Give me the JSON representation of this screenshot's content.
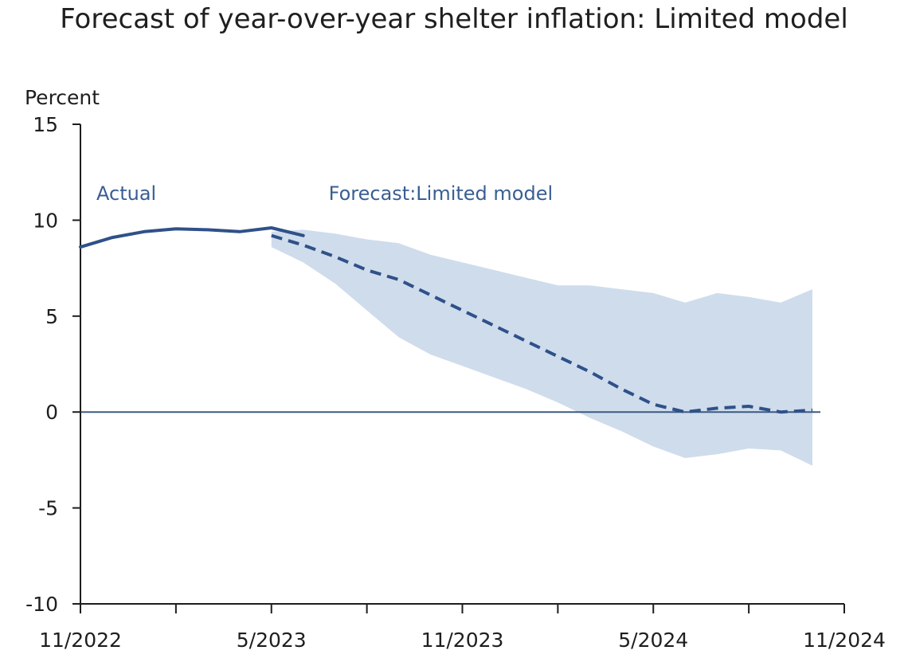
{
  "chart_data": {
    "type": "line",
    "title": "Forecast of year-over-year shelter inflation: Limited model",
    "ylabel": "Percent",
    "xlabel": "",
    "ylim": [
      -10,
      15
    ],
    "yticks": [
      -10,
      -5,
      0,
      5,
      10,
      15
    ],
    "xlim": [
      "2022-11",
      "2024-11"
    ],
    "xticks": [
      "2022-11",
      "2023-02",
      "2023-05",
      "2023-08",
      "2023-11",
      "2024-02",
      "2024-05",
      "2024-08",
      "2024-11"
    ],
    "xtick_labels": [
      "11/2022",
      "",
      "5/2023",
      "",
      "11/2023",
      "",
      "5/2024",
      "",
      "11/2024"
    ],
    "grid": false,
    "colors": {
      "line": "#2f5189",
      "band": "#cfdcec",
      "zero_line": "#3d5a80",
      "axis": "#1e1e1e"
    },
    "series": [
      {
        "name": "Actual",
        "style": "solid",
        "x": [
          "2022-11",
          "2022-12",
          "2023-01",
          "2023-02",
          "2023-03",
          "2023-04",
          "2023-05",
          "2023-06"
        ],
        "y": [
          8.6,
          9.1,
          9.4,
          9.55,
          9.5,
          9.4,
          9.6,
          9.2
        ]
      },
      {
        "name": "Forecast:Limited model",
        "style": "dashed",
        "x": [
          "2023-05",
          "2023-06",
          "2023-07",
          "2023-08",
          "2023-09",
          "2023-10",
          "2023-11",
          "2023-12",
          "2024-01",
          "2024-02",
          "2024-03",
          "2024-04",
          "2024-05",
          "2024-06",
          "2024-07",
          "2024-08",
          "2024-09",
          "2024-10"
        ],
        "y": [
          9.2,
          8.7,
          8.1,
          7.4,
          6.9,
          6.1,
          5.3,
          4.5,
          3.7,
          2.9,
          2.1,
          1.2,
          0.4,
          0.0,
          0.2,
          0.3,
          0.0,
          0.1
        ]
      }
    ],
    "band": {
      "x": [
        "2023-05",
        "2023-06",
        "2023-07",
        "2023-08",
        "2023-09",
        "2023-10",
        "2023-11",
        "2023-12",
        "2024-01",
        "2024-02",
        "2024-03",
        "2024-04",
        "2024-05",
        "2024-06",
        "2024-07",
        "2024-08",
        "2024-09",
        "2024-10"
      ],
      "upper": [
        9.4,
        9.5,
        9.3,
        9.0,
        8.8,
        8.2,
        7.8,
        7.4,
        7.0,
        6.6,
        6.6,
        6.4,
        6.2,
        5.7,
        6.2,
        6.0,
        5.7,
        6.4
      ],
      "lower": [
        8.6,
        7.8,
        6.7,
        5.3,
        3.9,
        3.0,
        2.4,
        1.8,
        1.2,
        0.5,
        -0.3,
        -1.0,
        -1.8,
        -2.4,
        -2.2,
        -1.9,
        -2.0,
        -2.8
      ]
    }
  }
}
